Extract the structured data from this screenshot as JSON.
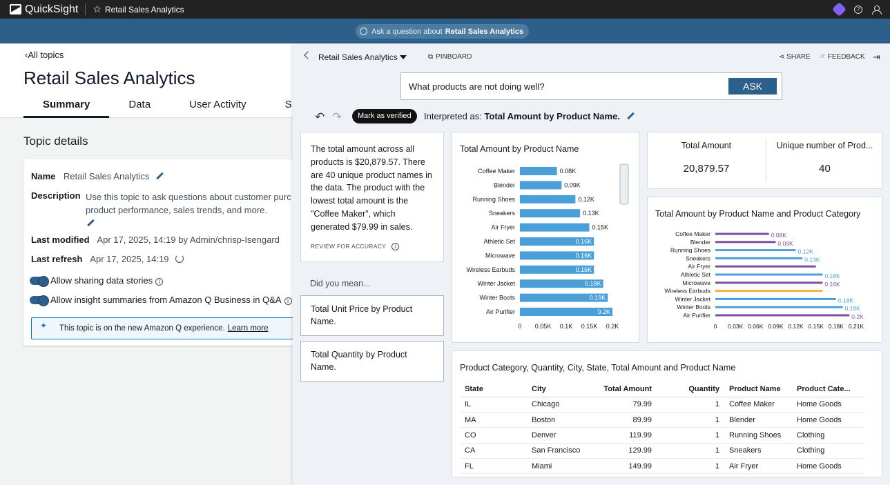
{
  "topbar": {
    "app_name": "QuickSight",
    "title": "Retail Sales Analytics"
  },
  "askbar": {
    "prefix": "Ask a question about",
    "topic": "Retail Sales Analytics"
  },
  "left": {
    "back_link": "All topics",
    "title": "Retail Sales Analytics",
    "tabs": [
      "Summary",
      "Data",
      "User Activity",
      "S"
    ],
    "section_title": "Topic details",
    "name_label": "Name",
    "name_value": "Retail Sales Analytics",
    "description_label": "Description",
    "description_value": "Use this topic to ask questions about customer purc product performance, sales trends, and more.",
    "last_modified_label": "Last modified",
    "last_modified_value": "Apr 17, 2025, 14:19 by Admin/chrisp-Isengard",
    "last_refresh_label": "Last refresh",
    "last_refresh_value": "Apr 17, 2025, 14:19",
    "toggle1": "Allow sharing data stories",
    "toggle2": "Allow insight summaries from Amazon Q Business in Q&A",
    "notice_text": "This topic is on the new Amazon Q experience.",
    "notice_link": "Learn more"
  },
  "panel": {
    "topic": "Retail Sales Analytics",
    "pinboard": "PINBOARD",
    "share": "SHARE",
    "feedback": "FEEDBACK",
    "question": "What products are not doing well?",
    "ask_button": "ASK",
    "verified": "Mark as verified",
    "interpreted_prefix": "Interpreted as:",
    "interpreted_value": "Total Amount by Product Name.",
    "summary": "The total amount across all products is $20,879.57. There are 40 unique product names in the data. The product with the lowest total amount is the \"Coffee Maker\", which generated $79.99 in sales.",
    "review": "REVIEW FOR ACCURACY",
    "did_you_mean": "Did you mean...",
    "suggestions": [
      "Total Unit Price by Product Name.",
      "Total Quantity by Product Name."
    ],
    "kpi": [
      {
        "label": "Total Amount",
        "value": "20,879.57"
      },
      {
        "label": "Unique number of Prod...",
        "value": "40"
      }
    ],
    "table": {
      "title": "Product Category, Quantity, City, State, Total Amount and Product Name",
      "headers": [
        "State",
        "City",
        "Total Amount",
        "Quantity",
        "Product Name",
        "Product Cate..."
      ],
      "rows": [
        [
          "IL",
          "Chicago",
          "79.99",
          "1",
          "Coffee Maker",
          "Home Goods"
        ],
        [
          "MA",
          "Boston",
          "89.99",
          "1",
          "Blender",
          "Home Goods"
        ],
        [
          "CO",
          "Denver",
          "119.99",
          "1",
          "Running Shoes",
          "Clothing"
        ],
        [
          "CA",
          "San Francisco",
          "129.99",
          "1",
          "Sneakers",
          "Clothing"
        ],
        [
          "FL",
          "Miami",
          "149.99",
          "1",
          "Air Fryer",
          "Home Goods"
        ]
      ]
    }
  },
  "chart_data": [
    {
      "type": "bar",
      "orientation": "horizontal",
      "title": "Total Amount by Product Name",
      "categories": [
        "Coffee Maker",
        "Blender",
        "Running Shoes",
        "Sneakers",
        "Air Fryer",
        "Athletic Set",
        "Microwave",
        "Wireless Earbuds",
        "Winter Jacket",
        "Winter Boots",
        "Air Purifier"
      ],
      "values": [
        79.99,
        89.99,
        119.99,
        129.99,
        149.99,
        159.99,
        159.99,
        159.99,
        179.99,
        189.99,
        199.99
      ],
      "labels": [
        "0.08K",
        "0.09K",
        "0.12K",
        "0.13K",
        "0.15K",
        "0.16K",
        "0.16K",
        "0.16K",
        "0.18K",
        "0.19K",
        "0.2K"
      ],
      "xticks": [
        "0",
        "0.05K",
        "0.1K",
        "0.15K",
        "0.2K"
      ],
      "xlim": [
        0,
        200
      ],
      "color": "#4a9fd8"
    },
    {
      "type": "bar",
      "orientation": "horizontal",
      "title": "Total Amount by Product Name and Product Category",
      "categories": [
        "Coffee Maker",
        "Blender",
        "Running Shoes",
        "Sneakers",
        "Air Fryer",
        "Athletic Set",
        "Microwave",
        "Wireless Earbuds",
        "Winter Jacket",
        "Winter Boots",
        "Air Purifier"
      ],
      "values": [
        79.99,
        89.99,
        119.99,
        129.99,
        149.99,
        159.99,
        159.99,
        159.99,
        179.99,
        189.99,
        199.99
      ],
      "labels": [
        "0.08K",
        "0.09K",
        "0.12K",
        "0.13K",
        "",
        "0.16K",
        "0.16K",
        "",
        "0.18K",
        "0.19K",
        "0.2K"
      ],
      "categories_color": [
        "purple",
        "purple",
        "blue",
        "blue",
        "purple",
        "blue",
        "purple",
        "orange",
        "blue",
        "blue",
        "purple"
      ],
      "colors": {
        "purple": "#7b4fa3",
        "blue": "#4a9fd8",
        "orange": "#f0b53f"
      },
      "xticks": [
        "0",
        "0.03K",
        "0.06K",
        "0.09K",
        "0.12K",
        "0.15K",
        "0.18K",
        "0.21K"
      ],
      "xlim": [
        0,
        210
      ]
    }
  ]
}
